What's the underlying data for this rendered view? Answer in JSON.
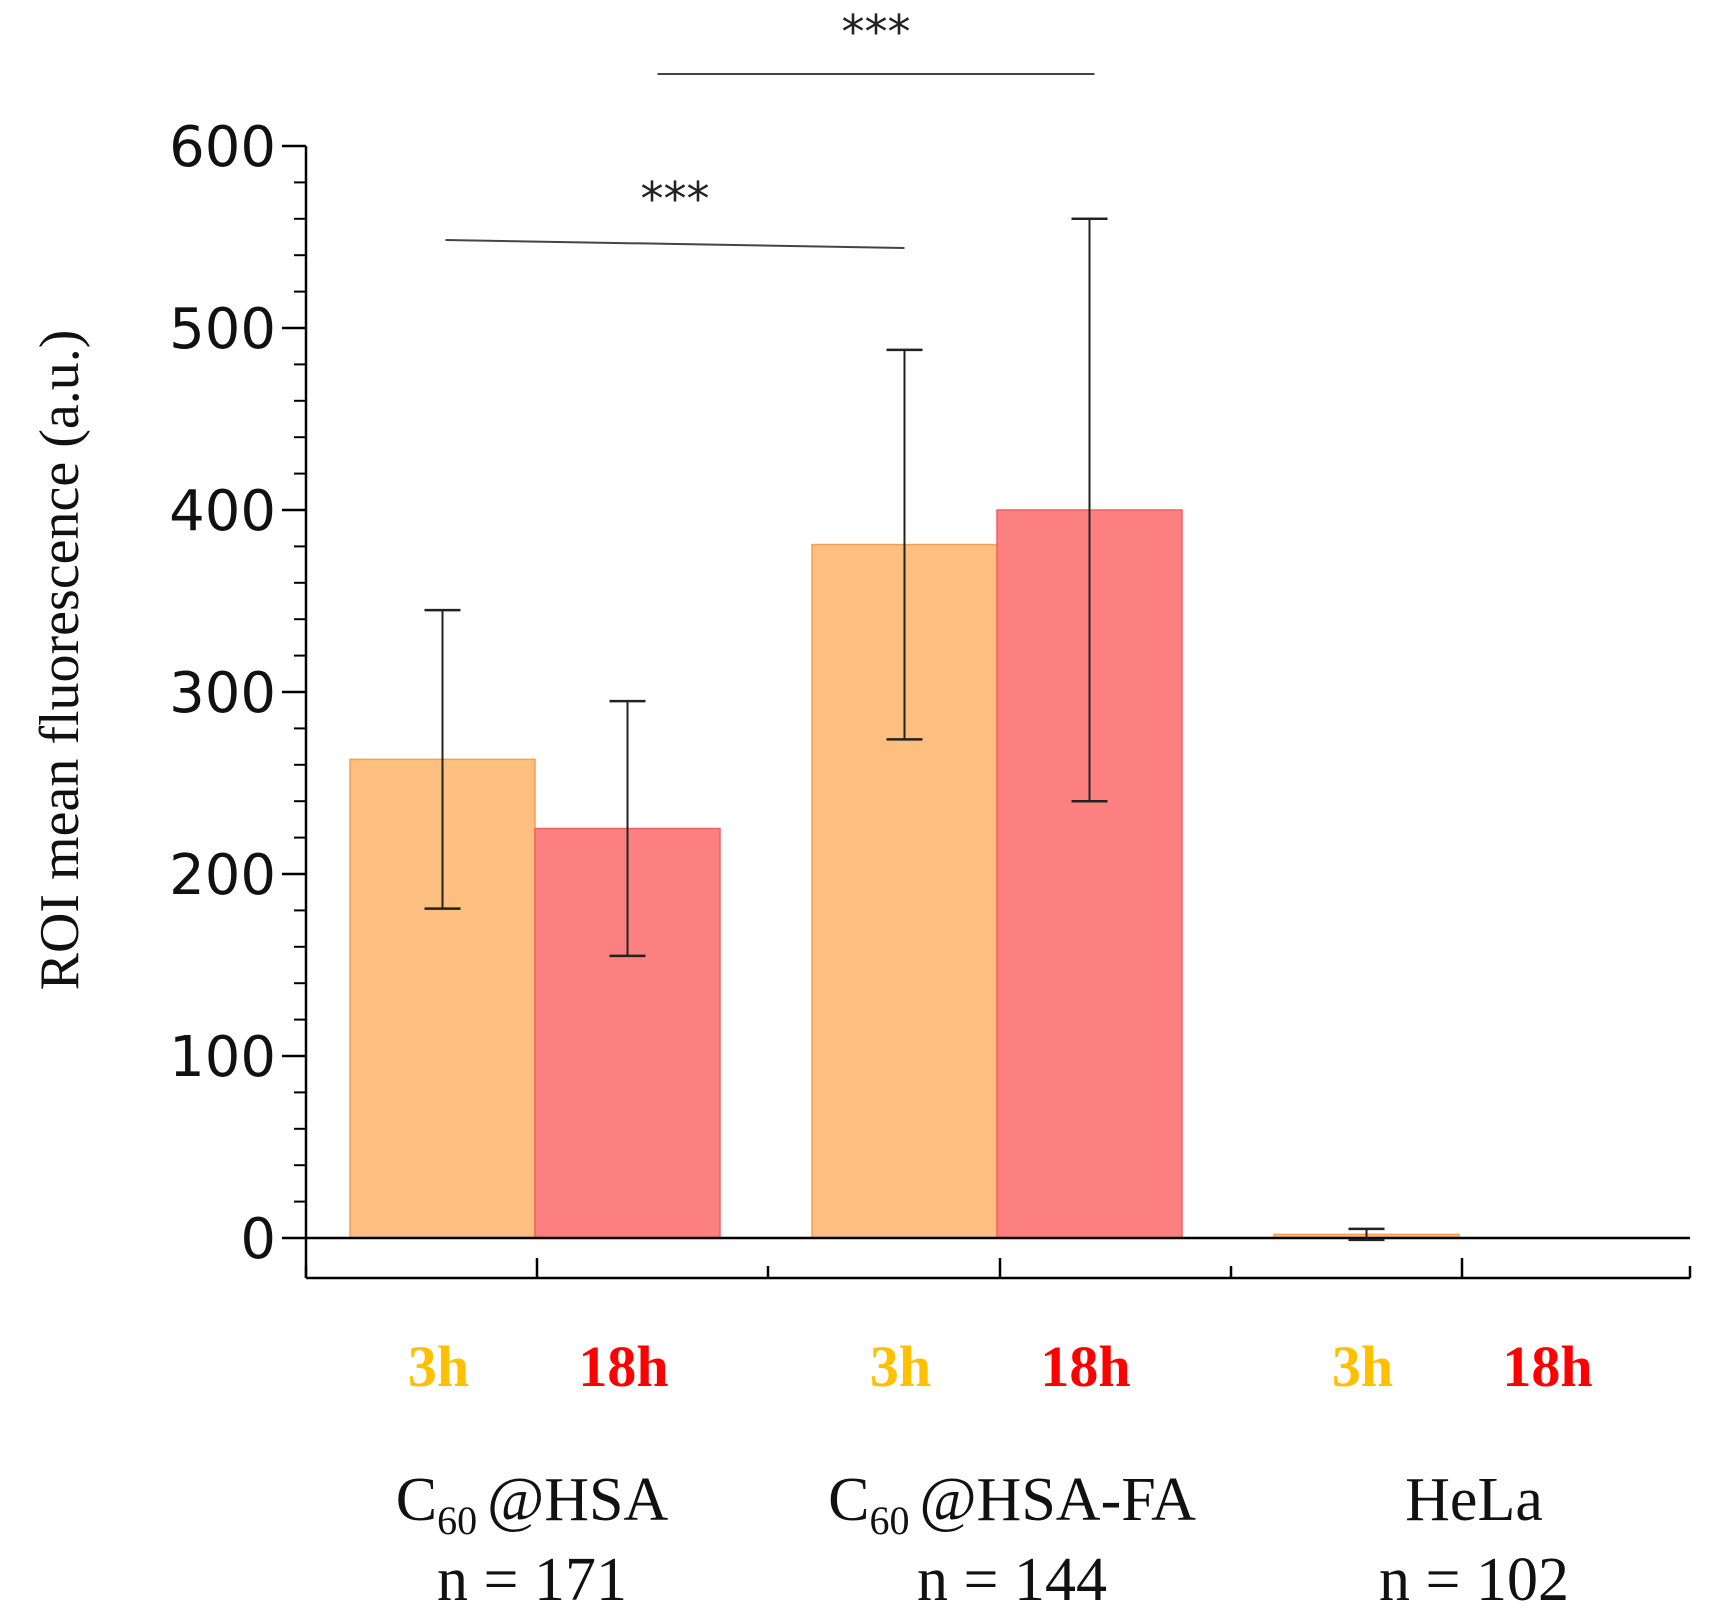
{
  "chart_data": {
    "type": "bar",
    "ylabel": "ROI mean fluorescence (a.u.)",
    "ylim": [
      0,
      600
    ],
    "yticks": [
      "0",
      "100",
      "200",
      "300",
      "400",
      "500",
      "600"
    ],
    "groups": [
      {
        "name": "C60@HSA",
        "label_main": "C",
        "label_sub": "60",
        "label_rest": "@HSA",
        "n_label": "n = 171"
      },
      {
        "name": "C60@HSA-FA",
        "label_main": "C",
        "label_sub": "60",
        "label_rest": "@HSA-FA",
        "n_label": "n = 144"
      },
      {
        "name": "HeLa",
        "label_main": "HeLa",
        "label_sub": "",
        "label_rest": "",
        "n_label": "n = 102"
      }
    ],
    "series": [
      {
        "name": "3h",
        "color_fill": "#fcbf7f",
        "color_edge": "#f5a050",
        "color_label": "#ffc000",
        "values": [
          263,
          381,
          2
        ],
        "errors": [
          82,
          107,
          3
        ]
      },
      {
        "name": "18h",
        "color_fill": "#fc8080",
        "color_edge": "#f06060",
        "color_label": "#ff0000",
        "values": [
          225,
          400,
          0
        ],
        "errors": [
          70,
          160,
          0
        ]
      }
    ],
    "significance": [
      {
        "label": "***",
        "from": "C60@HSA 3h",
        "to": "C60@HSA-FA 3h"
      },
      {
        "label": "***",
        "from": "C60@HSA 18h",
        "to": "C60@HSA-FA 18h"
      }
    ]
  }
}
